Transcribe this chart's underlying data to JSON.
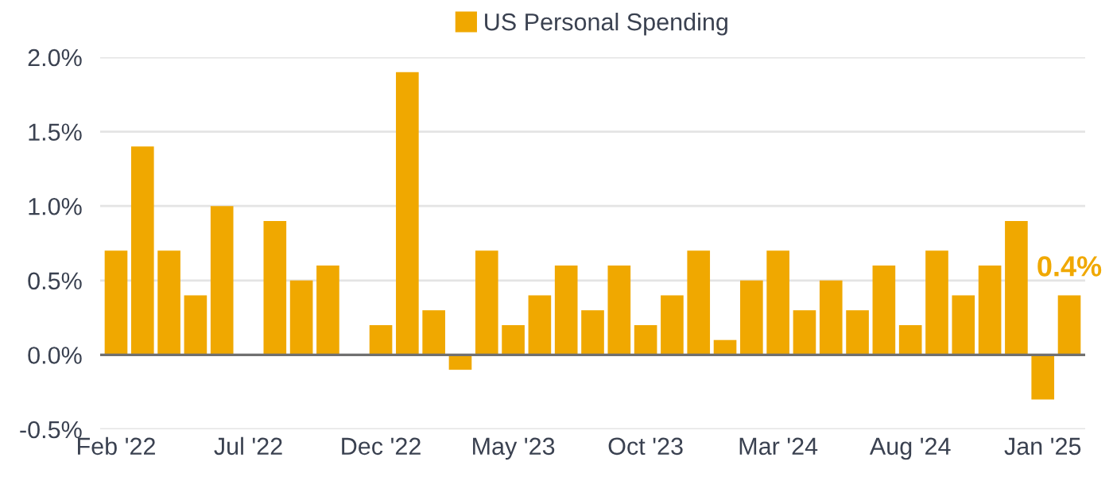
{
  "chart_data": {
    "type": "bar",
    "categories": [
      "Feb '22",
      null,
      null,
      null,
      null,
      "Jul '22",
      null,
      null,
      null,
      null,
      "Dec '22",
      null,
      null,
      null,
      null,
      "May '23",
      null,
      null,
      null,
      null,
      "Oct '23",
      null,
      null,
      null,
      null,
      "Mar '24",
      null,
      null,
      null,
      null,
      "Aug '24",
      null,
      null,
      null,
      null,
      "Jan '25",
      null
    ],
    "series": [
      {
        "name": "US Personal Spending",
        "color": "#f0a800",
        "values": [
          0.7,
          1.4,
          0.7,
          0.4,
          1.0,
          null,
          0.9,
          0.5,
          0.6,
          null,
          0.2,
          1.9,
          0.3,
          -0.1,
          0.7,
          0.2,
          0.4,
          0.6,
          0.3,
          0.6,
          0.2,
          0.4,
          0.7,
          0.1,
          0.5,
          0.7,
          0.3,
          0.5,
          0.3,
          0.6,
          0.2,
          0.7,
          0.4,
          0.6,
          0.9,
          -0.3,
          0.4
        ],
        "value_labels": [
          null,
          null,
          null,
          null,
          null,
          null,
          null,
          null,
          null,
          null,
          null,
          null,
          null,
          null,
          null,
          null,
          null,
          null,
          null,
          null,
          null,
          null,
          null,
          null,
          null,
          null,
          null,
          null,
          null,
          null,
          null,
          null,
          null,
          null,
          null,
          null,
          "0.4%"
        ]
      }
    ],
    "ylim": [
      -0.5,
      2.0
    ],
    "yticks": [
      {
        "value": -0.5,
        "label": "-0.5%"
      },
      {
        "value": 0.0,
        "label": "0.0%"
      },
      {
        "value": 0.5,
        "label": "0.5%"
      },
      {
        "value": 1.0,
        "label": "1.0%"
      },
      {
        "value": 1.5,
        "label": "1.5%"
      },
      {
        "value": 2.0,
        "label": "2.0%"
      }
    ],
    "grid": "y",
    "legend": "top"
  }
}
